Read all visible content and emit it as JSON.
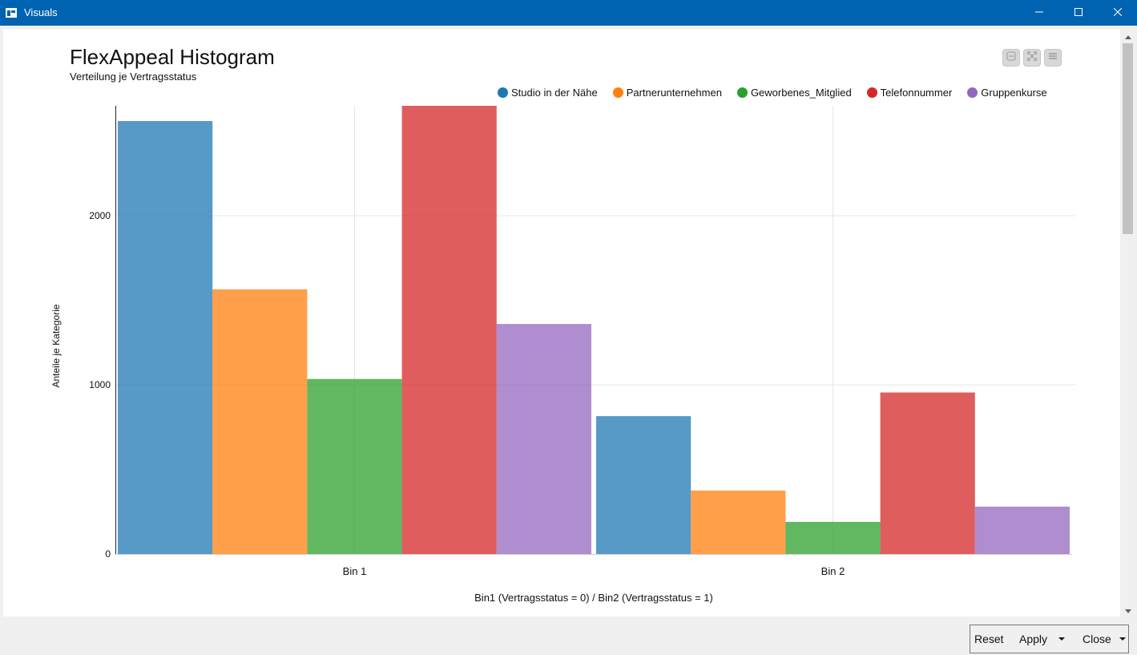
{
  "window": {
    "title": "Visuals"
  },
  "toolbar": {
    "icons": [
      "minus-icon",
      "expand-icon",
      "menu-icon"
    ]
  },
  "footer": {
    "reset_label": "Reset",
    "apply_label": "Apply",
    "close_label": "Close"
  },
  "chart_data": {
    "type": "bar",
    "title": "FlexAppeal Histogram",
    "subtitle": "Verteilung je Vertragsstatus",
    "xlabel": "Bin1 (Vertragsstatus = 0) / Bin2 (Vertragsstatus = 1)",
    "ylabel": "Anteile je Kategorie",
    "categories": [
      "Bin 1",
      "Bin 2"
    ],
    "ylim": [
      0,
      2650
    ],
    "yticks": [
      0,
      1000,
      2000
    ],
    "grid": true,
    "legend_position": "top-right",
    "series": [
      {
        "name": "Studio in der Nähe",
        "color": "#1f77b4",
        "values": [
          2560,
          815
        ]
      },
      {
        "name": "Partnerunternehmen",
        "color": "#ff7f0e",
        "values": [
          1565,
          375
        ]
      },
      {
        "name": "Geworbenes_Mitglied",
        "color": "#2ca02c",
        "values": [
          1035,
          190
        ]
      },
      {
        "name": "Telefonnummer",
        "color": "#d62728",
        "values": [
          2650,
          955
        ]
      },
      {
        "name": "Gruppenkurse",
        "color": "#9467bd",
        "values": [
          1360,
          280
        ]
      }
    ]
  }
}
